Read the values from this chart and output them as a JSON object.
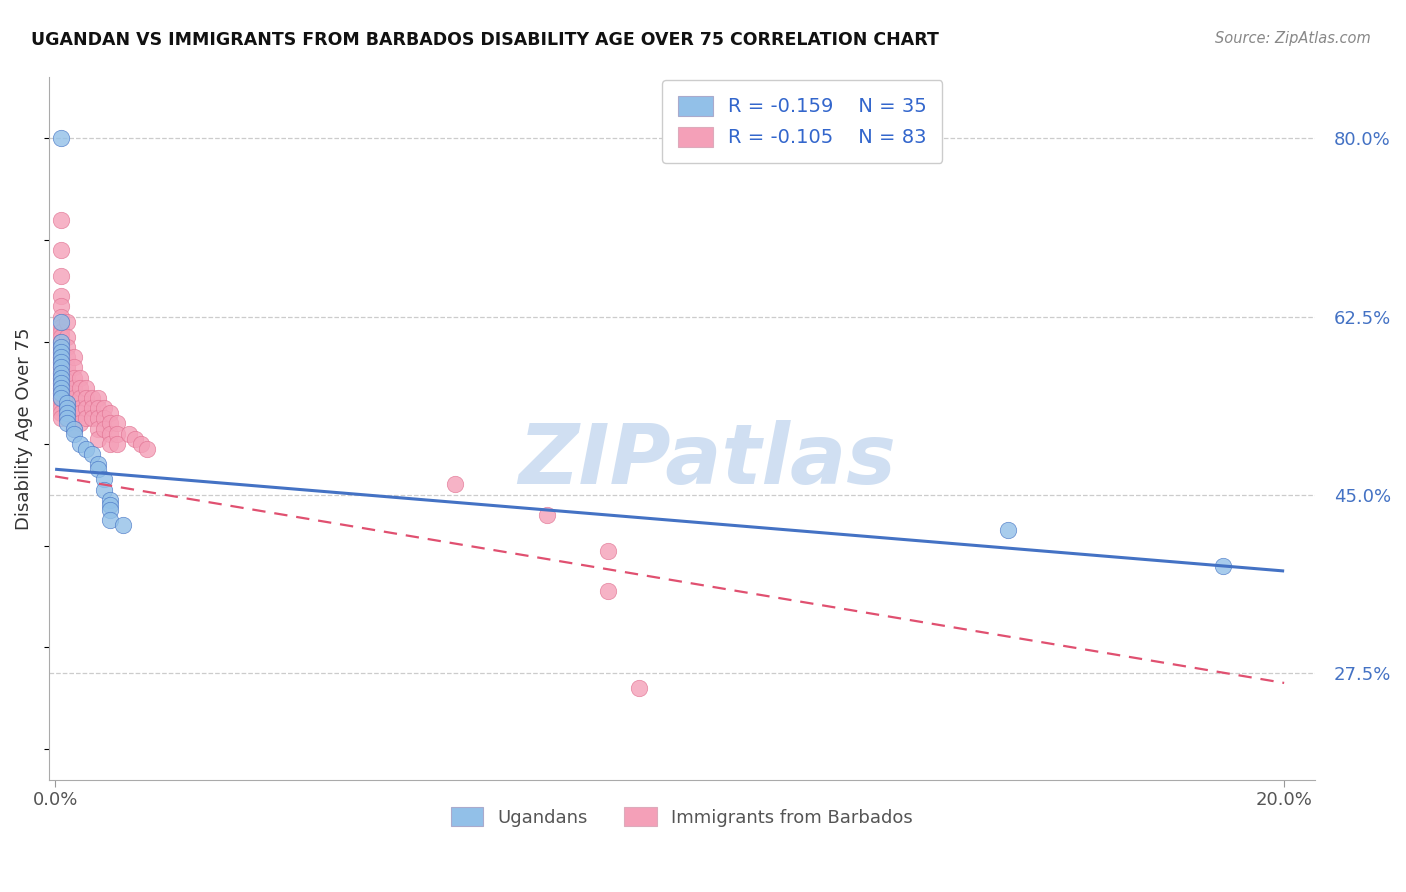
{
  "title": "UGANDAN VS IMMIGRANTS FROM BARBADOS DISABILITY AGE OVER 75 CORRELATION CHART",
  "source": "Source: ZipAtlas.com",
  "ylabel": "Disability Age Over 75",
  "color_ugandan": "#92c0e8",
  "color_barbados": "#f4a0b8",
  "color_ugandan_line": "#4472c4",
  "color_barbados_line": "#e05070",
  "watermark": "ZIPatlas",
  "ytick_labels": [
    "80.0%",
    "62.5%",
    "45.0%",
    "27.5%"
  ],
  "ytick_values": [
    0.8,
    0.625,
    0.45,
    0.275
  ],
  "ylim": [
    0.17,
    0.86
  ],
  "xlim": [
    -0.001,
    0.205
  ],
  "xtick_labels": [
    "0.0%",
    "20.0%"
  ],
  "xtick_values": [
    0.0,
    0.2
  ],
  "legend1_r": "-0.159",
  "legend1_n": "35",
  "legend2_r": "-0.105",
  "legend2_n": "83",
  "ug_line_x0": 0.0,
  "ug_line_y0": 0.475,
  "ug_line_x1": 0.2,
  "ug_line_y1": 0.375,
  "bb_line_x0": 0.0,
  "bb_line_y0": 0.468,
  "bb_line_x1": 0.2,
  "bb_line_y1": 0.265,
  "ugandan_x": [
    0.001,
    0.001,
    0.001,
    0.001,
    0.001,
    0.001,
    0.001,
    0.001,
    0.001,
    0.001,
    0.001,
    0.001,
    0.001,
    0.001,
    0.002,
    0.002,
    0.002,
    0.002,
    0.002,
    0.003,
    0.003,
    0.004,
    0.005,
    0.006,
    0.007,
    0.007,
    0.008,
    0.008,
    0.009,
    0.009,
    0.009,
    0.009,
    0.011,
    0.155,
    0.19
  ],
  "ugandan_y": [
    0.8,
    0.62,
    0.6,
    0.595,
    0.59,
    0.585,
    0.58,
    0.575,
    0.57,
    0.565,
    0.56,
    0.555,
    0.55,
    0.545,
    0.54,
    0.535,
    0.53,
    0.525,
    0.52,
    0.515,
    0.51,
    0.5,
    0.495,
    0.49,
    0.48,
    0.475,
    0.465,
    0.455,
    0.445,
    0.44,
    0.435,
    0.425,
    0.42,
    0.415,
    0.38
  ],
  "barbados_x": [
    0.001,
    0.001,
    0.001,
    0.001,
    0.001,
    0.001,
    0.001,
    0.001,
    0.001,
    0.001,
    0.001,
    0.001,
    0.001,
    0.001,
    0.001,
    0.001,
    0.001,
    0.001,
    0.001,
    0.001,
    0.001,
    0.001,
    0.001,
    0.001,
    0.001,
    0.002,
    0.002,
    0.002,
    0.002,
    0.002,
    0.002,
    0.002,
    0.002,
    0.002,
    0.002,
    0.002,
    0.002,
    0.002,
    0.003,
    0.003,
    0.003,
    0.003,
    0.003,
    0.003,
    0.003,
    0.003,
    0.004,
    0.004,
    0.004,
    0.004,
    0.004,
    0.004,
    0.005,
    0.005,
    0.005,
    0.005,
    0.006,
    0.006,
    0.006,
    0.007,
    0.007,
    0.007,
    0.007,
    0.007,
    0.008,
    0.008,
    0.008,
    0.009,
    0.009,
    0.009,
    0.009,
    0.01,
    0.01,
    0.01,
    0.012,
    0.013,
    0.014,
    0.015,
    0.065,
    0.08,
    0.09,
    0.09,
    0.095
  ],
  "barbados_y": [
    0.72,
    0.69,
    0.665,
    0.645,
    0.635,
    0.625,
    0.615,
    0.61,
    0.605,
    0.6,
    0.595,
    0.59,
    0.585,
    0.58,
    0.575,
    0.57,
    0.565,
    0.56,
    0.555,
    0.55,
    0.545,
    0.54,
    0.535,
    0.53,
    0.525,
    0.62,
    0.605,
    0.595,
    0.585,
    0.575,
    0.565,
    0.555,
    0.55,
    0.545,
    0.54,
    0.535,
    0.53,
    0.525,
    0.585,
    0.575,
    0.565,
    0.555,
    0.545,
    0.535,
    0.525,
    0.515,
    0.565,
    0.555,
    0.545,
    0.535,
    0.53,
    0.52,
    0.555,
    0.545,
    0.535,
    0.525,
    0.545,
    0.535,
    0.525,
    0.545,
    0.535,
    0.525,
    0.515,
    0.505,
    0.535,
    0.525,
    0.515,
    0.53,
    0.52,
    0.51,
    0.5,
    0.52,
    0.51,
    0.5,
    0.51,
    0.505,
    0.5,
    0.495,
    0.46,
    0.43,
    0.395,
    0.355,
    0.26
  ]
}
